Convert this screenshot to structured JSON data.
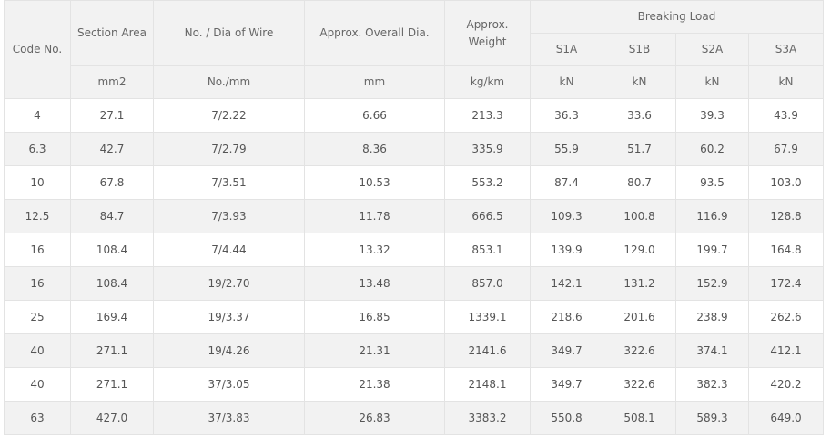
{
  "table": {
    "headers": {
      "code_no": "Code No.",
      "section_area": "Section Area",
      "wire": "No. / Dia of Wire",
      "overall_dia": "Approx. Overall Dia.",
      "weight": "Approx. Weight",
      "breaking_load": "Breaking Load",
      "s1a": "S1A",
      "s1b": "S1B",
      "s2a": "S2A",
      "s3a": "S3A"
    },
    "units": [
      "mm2",
      "No./mm",
      "mm",
      "kg/km",
      "kN",
      "kN",
      "kN",
      "kN"
    ],
    "rows": [
      [
        "4",
        "27.1",
        "7/2.22",
        "6.66",
        "213.3",
        "36.3",
        "33.6",
        "39.3",
        "43.9"
      ],
      [
        "6.3",
        "42.7",
        "7/2.79",
        "8.36",
        "335.9",
        "55.9",
        "51.7",
        "60.2",
        "67.9"
      ],
      [
        "10",
        "67.8",
        "7/3.51",
        "10.53",
        "553.2",
        "87.4",
        "80.7",
        "93.5",
        "103.0"
      ],
      [
        "12.5",
        "84.7",
        "7/3.93",
        "11.78",
        "666.5",
        "109.3",
        "100.8",
        "116.9",
        "128.8"
      ],
      [
        "16",
        "108.4",
        "7/4.44",
        "13.32",
        "853.1",
        "139.9",
        "129.0",
        "199.7",
        "164.8"
      ],
      [
        "16",
        "108.4",
        "19/2.70",
        "13.48",
        "857.0",
        "142.1",
        "131.2",
        "152.9",
        "172.4"
      ],
      [
        "25",
        "169.4",
        "19/3.37",
        "16.85",
        "1339.1",
        "218.6",
        "201.6",
        "238.9",
        "262.6"
      ],
      [
        "40",
        "271.1",
        "19/4.26",
        "21.31",
        "2141.6",
        "349.7",
        "322.6",
        "374.1",
        "412.1"
      ],
      [
        "40",
        "271.1",
        "37/3.05",
        "21.38",
        "2148.1",
        "349.7",
        "322.6",
        "382.3",
        "420.2"
      ],
      [
        "63",
        "427.0",
        "37/3.83",
        "26.83",
        "3383.2",
        "550.8",
        "508.1",
        "589.3",
        "649.0"
      ]
    ]
  }
}
